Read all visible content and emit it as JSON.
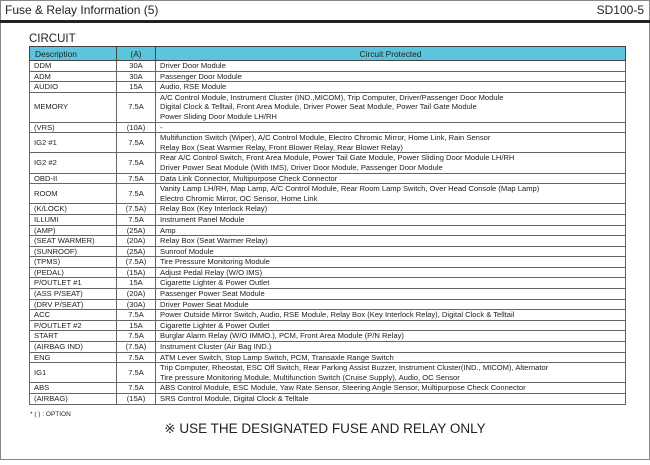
{
  "header": {
    "title": "Fuse & Relay Information (5)",
    "code": "SD100-5"
  },
  "section_title": "CIRCUIT",
  "table": {
    "columns": [
      "Description",
      "(A)",
      "Circuit Protected"
    ],
    "rows": [
      {
        "desc": "DDM",
        "amp": "30A",
        "lines": [
          "Driver Door Module"
        ]
      },
      {
        "desc": "ADM",
        "amp": "30A",
        "lines": [
          "Passenger Door Module"
        ]
      },
      {
        "desc": "AUDIO",
        "amp": "15A",
        "lines": [
          "Audio, RSE Module"
        ]
      },
      {
        "desc": "MEMORY",
        "amp": "7.5A",
        "lines": [
          "A/C Control Module, Instrument Cluster (IND.,MICOM), Trip Computer, Driver/Passenger Door Module",
          "Digital Clock & Telltail, Front Area Module, Driver Power Seat Module, Power Tail Gate Module",
          "Power Sliding Door Module LH/RH"
        ]
      },
      {
        "desc": "(VRS)",
        "amp": "(10A)",
        "lines": [
          "-"
        ]
      },
      {
        "desc": "IG2 #1",
        "amp": "7.5A",
        "lines": [
          "Multifunction Switch (Wiper), A/C Control Module, Electro Chromic Mirror, Home Link, Rain Sensor",
          "Relay Box (Seat Warmer Relay, Front Blower Relay, Rear Blower Relay)"
        ]
      },
      {
        "desc": "IG2 #2",
        "amp": "7.5A",
        "lines": [
          "Rear A/C Control Switch, Front Area Module, Power Tail Gate Module, Power Sliding Door Module LH/RH",
          "Driver Power Seat Module (With IMS), Driver Door Module, Passenger Door Module"
        ]
      },
      {
        "desc": "OBD-II",
        "amp": "7.5A",
        "lines": [
          "Data Link Connector, Multipurpose Check Connector"
        ]
      },
      {
        "desc": "ROOM",
        "amp": "7.5A",
        "lines": [
          "Vanity Lamp LH/RH, Map Lamp, A/C Control Module, Rear Room Lamp Switch, Over Head Console (Map Lamp)",
          "Electro Chromic Mirror, OC Sensor, Home Link"
        ]
      },
      {
        "desc": "(K/LOCK)",
        "amp": "(7.5A)",
        "lines": [
          "Relay Box (Key Interlock Relay)"
        ]
      },
      {
        "desc": "ILLUMI",
        "amp": "7.5A",
        "lines": [
          "Instrument Panel Module"
        ]
      },
      {
        "desc": "(AMP)",
        "amp": "(25A)",
        "lines": [
          "Amp"
        ]
      },
      {
        "desc": "(SEAT WARMER)",
        "amp": "(20A)",
        "lines": [
          "Relay Box (Seat Warmer Relay)"
        ]
      },
      {
        "desc": "(SUNROOF)",
        "amp": "(25A)",
        "lines": [
          "Sunroof Module"
        ]
      },
      {
        "desc": "(TPMS)",
        "amp": "(7.5A)",
        "lines": [
          "Tire Pressure Monitoring Module"
        ]
      },
      {
        "desc": "(PEDAL)",
        "amp": "(15A)",
        "lines": [
          "Adjust Pedal Relay (W/O IMS)"
        ]
      },
      {
        "desc": "P/OUTLET #1",
        "amp": "15A",
        "lines": [
          "Cigarette Lighter & Power Outlet"
        ]
      },
      {
        "desc": "(ASS P/SEAT)",
        "amp": "(20A)",
        "lines": [
          "Passenger Power Seat Module"
        ]
      },
      {
        "desc": "(DRV P/SEAT)",
        "amp": "(30A)",
        "lines": [
          "Driver Power Seat Module"
        ]
      },
      {
        "desc": "ACC",
        "amp": "7.5A",
        "lines": [
          "Power Outside Mirror Switch, Audio, RSE Module, Relay Box (Key Interlock Relay), Digital Clock & Telltail"
        ]
      },
      {
        "desc": "P/OUTLET #2",
        "amp": "15A",
        "lines": [
          "Cigarette Lighter & Power Outlet"
        ]
      },
      {
        "desc": "START",
        "amp": "7.5A",
        "lines": [
          "Burglar Alarm Relay (W/O IMMO.), PCM, Front Area Module (P/N Relay)"
        ]
      },
      {
        "desc": "(AIRBAG IND)",
        "amp": "(7.5A)",
        "lines": [
          "Instrument Cluster (Air Bag IND.)"
        ]
      },
      {
        "desc": "ENG",
        "amp": "7.5A",
        "lines": [
          "ATM Lever Switch, Stop Lamp Switch, PCM, Transaxle Range Switch"
        ]
      },
      {
        "desc": "IG1",
        "amp": "7.5A",
        "lines": [
          "Trip Computer, Rheostat, ESC Off Switch, Rear Parking Assist Buzzer, Instrument Cluster(IND., MICOM), Alternator",
          "Tire pressure Monitoring Module, Multifunction Switch (Cruise Supply), Audio, OC Sensor"
        ]
      },
      {
        "desc": "ABS",
        "amp": "7.5A",
        "lines": [
          "ABS Control Module, ESC Module, Yaw Rate Sensor, Steering Angle Sensor, Multipurpose Check Connector"
        ]
      },
      {
        "desc": "(AIRBAG)",
        "amp": "(15A)",
        "lines": [
          "SRS Control Module, Digital Clock & Telltale"
        ]
      }
    ]
  },
  "footnote": "* (  ) : OPTION",
  "warning": "※ USE THE DESIGNATED FUSE AND RELAY ONLY"
}
